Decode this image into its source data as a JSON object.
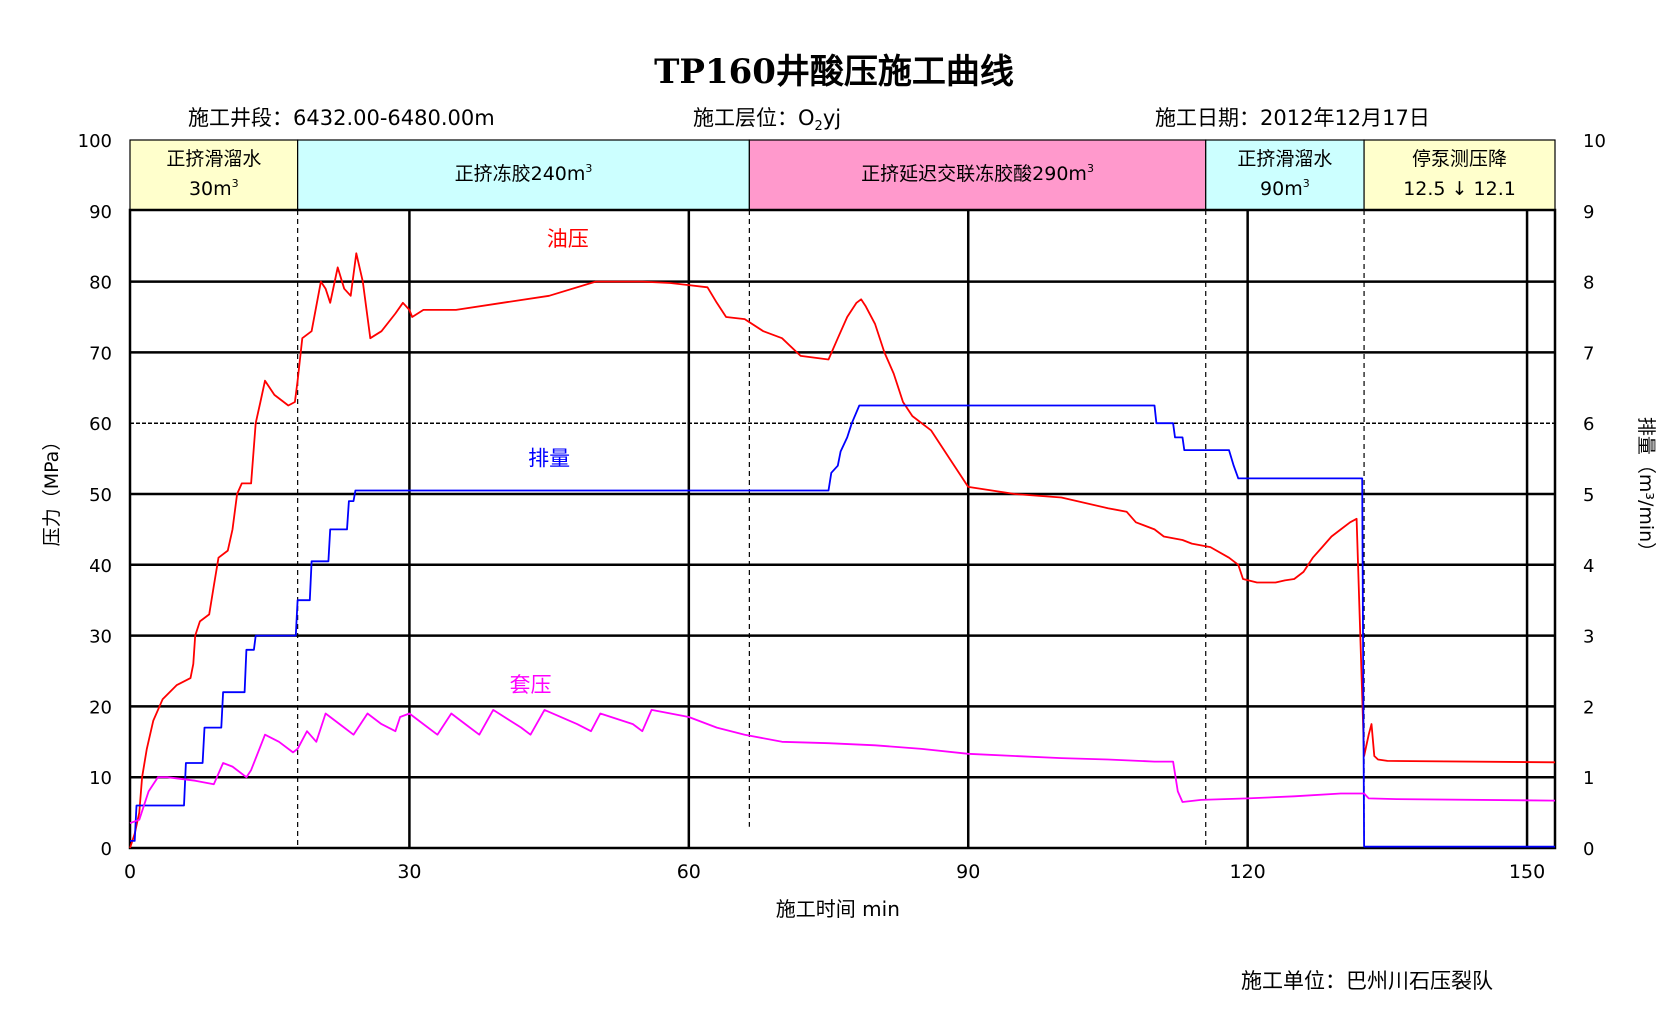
{
  "header": {
    "title": "TP160井酸压施工曲线",
    "well_section": "施工井段：6432.00-6480.00m",
    "formation_label": "施工层位：",
    "formation_main": "O",
    "formation_sub": "2",
    "formation_tail": "yj",
    "date": "施工日期：2012年12月17日"
  },
  "footer": {
    "unit": "施工单位：巴州川石压裂队"
  },
  "stages": [
    {
      "line1": "正挤滑溜水",
      "line2": "30m",
      "sup": "3",
      "start": 0,
      "end": 18,
      "color": "#ffffcc"
    },
    {
      "line1": "正挤冻胶240m",
      "line2": "",
      "sup": "3",
      "start": 18,
      "end": 66.5,
      "color": "#ccffff"
    },
    {
      "line1": "正挤延迟交联冻胶酸290m",
      "line2": "",
      "sup": "3",
      "start": 66.5,
      "end": 115.5,
      "color": "#ff99cc"
    },
    {
      "line1": "正挤滑溜水",
      "line2": "90m",
      "sup": "3",
      "start": 115.5,
      "end": 132.5,
      "color": "#ccffff"
    },
    {
      "line1": "停泵测压降",
      "line2": "12.5 ↓ 12.1",
      "sup": "",
      "start": 132.5,
      "end": 153,
      "color": "#ffffcc"
    }
  ],
  "chart_data": {
    "type": "line",
    "title": "TP160井酸压施工曲线",
    "xlabel": "施工时间 min",
    "ylabel": "压力（MPa）",
    "y2label": "排量（m³/min）",
    "xlim": [
      0,
      153
    ],
    "ylim": [
      0,
      100
    ],
    "y2lim": [
      0,
      10
    ],
    "xticks": [
      0,
      30,
      60,
      90,
      120,
      150
    ],
    "yticks": [
      0,
      10,
      20,
      30,
      40,
      50,
      60,
      70,
      80,
      90,
      100
    ],
    "y2ticks": [
      0,
      1,
      2,
      3,
      4,
      5,
      6,
      7,
      8,
      9,
      10
    ],
    "grid": true,
    "series": [
      {
        "name": "油压",
        "axis": "left",
        "color": "#ff0000",
        "label_at": [
          47,
          85
        ],
        "points": [
          [
            0,
            0
          ],
          [
            0.5,
            2
          ],
          [
            1,
            5
          ],
          [
            1.3,
            10
          ],
          [
            1.8,
            14
          ],
          [
            2.5,
            18
          ],
          [
            3.5,
            21
          ],
          [
            5,
            23
          ],
          [
            6.5,
            24
          ],
          [
            6.8,
            26
          ],
          [
            7,
            30
          ],
          [
            7.5,
            32
          ],
          [
            8.5,
            33
          ],
          [
            9,
            37
          ],
          [
            9.5,
            41
          ],
          [
            10.5,
            42
          ],
          [
            11,
            45
          ],
          [
            11.5,
            50
          ],
          [
            12,
            51.5
          ],
          [
            13,
            51.5
          ],
          [
            13.5,
            60
          ],
          [
            14,
            63
          ],
          [
            14.5,
            66
          ],
          [
            15.5,
            64
          ],
          [
            17,
            62.5
          ],
          [
            17.7,
            63
          ],
          [
            18,
            66
          ],
          [
            18.5,
            72
          ],
          [
            19.5,
            73
          ],
          [
            20.5,
            80
          ],
          [
            21,
            79
          ],
          [
            21.5,
            77
          ],
          [
            22.3,
            82
          ],
          [
            23,
            79
          ],
          [
            23.7,
            78
          ],
          [
            24.3,
            84
          ],
          [
            25,
            80
          ],
          [
            25.8,
            72
          ],
          [
            27,
            73
          ],
          [
            28.5,
            75.5
          ],
          [
            29.3,
            77
          ],
          [
            30,
            76
          ],
          [
            30.3,
            75
          ],
          [
            31.5,
            76
          ],
          [
            35,
            76
          ],
          [
            40,
            77
          ],
          [
            45,
            78
          ],
          [
            50,
            80
          ],
          [
            55,
            80
          ],
          [
            58,
            79.8
          ],
          [
            60,
            79.5
          ],
          [
            62,
            79.2
          ],
          [
            63,
            77
          ],
          [
            64,
            75
          ],
          [
            66,
            74.7
          ],
          [
            68,
            73
          ],
          [
            70,
            72
          ],
          [
            72,
            69.5
          ],
          [
            75,
            69
          ],
          [
            76,
            72
          ],
          [
            77,
            75
          ],
          [
            78,
            77
          ],
          [
            78.5,
            77.5
          ],
          [
            79,
            76.5
          ],
          [
            80,
            74
          ],
          [
            81,
            70
          ],
          [
            82,
            67
          ],
          [
            83,
            63
          ],
          [
            84,
            61
          ],
          [
            86,
            59
          ],
          [
            88,
            55
          ],
          [
            90,
            51
          ],
          [
            95,
            50
          ],
          [
            100,
            49.5
          ],
          [
            105,
            48
          ],
          [
            107,
            47.5
          ],
          [
            108,
            46
          ],
          [
            110,
            45
          ],
          [
            111,
            44
          ],
          [
            113,
            43.5
          ],
          [
            114,
            43
          ],
          [
            116,
            42.5
          ],
          [
            118,
            41
          ],
          [
            119,
            40
          ],
          [
            119.5,
            38
          ],
          [
            121,
            37.5
          ],
          [
            123,
            37.5
          ],
          [
            124,
            37.8
          ],
          [
            125,
            38
          ],
          [
            126,
            39
          ],
          [
            127,
            41
          ],
          [
            128,
            42.5
          ],
          [
            129,
            44
          ],
          [
            130,
            45
          ],
          [
            131,
            46
          ],
          [
            131.7,
            46.5
          ],
          [
            132.5,
            13
          ],
          [
            133,
            16
          ],
          [
            133.3,
            17.5
          ],
          [
            133.6,
            13
          ],
          [
            134,
            12.5
          ],
          [
            135,
            12.3
          ],
          [
            153,
            12.1
          ]
        ]
      },
      {
        "name": "排量",
        "axis": "right",
        "color": "#0000ff",
        "label_at": [
          45,
          5.4
        ],
        "points": [
          [
            0,
            0.1
          ],
          [
            0.5,
            0.1
          ],
          [
            0.7,
            0.6
          ],
          [
            5.8,
            0.6
          ],
          [
            6,
            1.2
          ],
          [
            7.8,
            1.2
          ],
          [
            8,
            1.7
          ],
          [
            9.8,
            1.7
          ],
          [
            10,
            2.2
          ],
          [
            12.3,
            2.2
          ],
          [
            12.5,
            2.8
          ],
          [
            13.3,
            2.8
          ],
          [
            13.5,
            3
          ],
          [
            17.8,
            3
          ],
          [
            18,
            3.5
          ],
          [
            19.3,
            3.5
          ],
          [
            19.5,
            4.05
          ],
          [
            21.3,
            4.05
          ],
          [
            21.5,
            4.5
          ],
          [
            23.3,
            4.5
          ],
          [
            23.5,
            4.9
          ],
          [
            24,
            4.9
          ],
          [
            24.2,
            5.05
          ],
          [
            50,
            5.05
          ],
          [
            75,
            5.05
          ],
          [
            75.3,
            5.3
          ],
          [
            76,
            5.4
          ],
          [
            76.3,
            5.6
          ],
          [
            77,
            5.8
          ],
          [
            77.5,
            6.0
          ],
          [
            78.3,
            6.25
          ],
          [
            110,
            6.25
          ],
          [
            110.2,
            6.0
          ],
          [
            112,
            6.0
          ],
          [
            112.2,
            5.8
          ],
          [
            113,
            5.8
          ],
          [
            113.2,
            5.62
          ],
          [
            118,
            5.62
          ],
          [
            118.5,
            5.4
          ],
          [
            119,
            5.22
          ],
          [
            132.3,
            5.22
          ],
          [
            132.5,
            0.02
          ],
          [
            153,
            0.02
          ]
        ]
      },
      {
        "name": "套压",
        "axis": "left",
        "color": "#ff00ff",
        "label_at": [
          43,
          22
        ],
        "points": [
          [
            0,
            3.5
          ],
          [
            1,
            4
          ],
          [
            2,
            8
          ],
          [
            3,
            10
          ],
          [
            4,
            10
          ],
          [
            7,
            9.5
          ],
          [
            9,
            9
          ],
          [
            10,
            12
          ],
          [
            11,
            11.5
          ],
          [
            12.5,
            10
          ],
          [
            13,
            11
          ],
          [
            14.5,
            16
          ],
          [
            16,
            15
          ],
          [
            17.5,
            13.5
          ],
          [
            18,
            14
          ],
          [
            19,
            16.5
          ],
          [
            20,
            15
          ],
          [
            21,
            19
          ],
          [
            22.5,
            17.5
          ],
          [
            24,
            16
          ],
          [
            25.5,
            19
          ],
          [
            27,
            17.5
          ],
          [
            28.5,
            16.5
          ],
          [
            29,
            18.5
          ],
          [
            30,
            19
          ],
          [
            31.5,
            17.5
          ],
          [
            33,
            16
          ],
          [
            34.5,
            19
          ],
          [
            36,
            17.5
          ],
          [
            37.5,
            16
          ],
          [
            39,
            19.5
          ],
          [
            42,
            17
          ],
          [
            43,
            16
          ],
          [
            44.5,
            19.5
          ],
          [
            48,
            17.5
          ],
          [
            49.5,
            16.5
          ],
          [
            50.5,
            19
          ],
          [
            54,
            17.5
          ],
          [
            55,
            16.5
          ],
          [
            56,
            19.5
          ],
          [
            60,
            18.5
          ],
          [
            63,
            17
          ],
          [
            66,
            16
          ],
          [
            70,
            15
          ],
          [
            75,
            14.8
          ],
          [
            80,
            14.5
          ],
          [
            85,
            14
          ],
          [
            90,
            13.3
          ],
          [
            95,
            13
          ],
          [
            100,
            12.7
          ],
          [
            105,
            12.5
          ],
          [
            110,
            12.2
          ],
          [
            112,
            12.2
          ],
          [
            112.5,
            8
          ],
          [
            113,
            6.5
          ],
          [
            115,
            6.8
          ],
          [
            120,
            7
          ],
          [
            125,
            7.3
          ],
          [
            130,
            7.7
          ],
          [
            132.5,
            7.7
          ],
          [
            133,
            7
          ],
          [
            136,
            6.9
          ],
          [
            153,
            6.7
          ]
        ]
      }
    ],
    "stage_boundaries": [
      18,
      66.5,
      115.5,
      132.5
    ]
  }
}
